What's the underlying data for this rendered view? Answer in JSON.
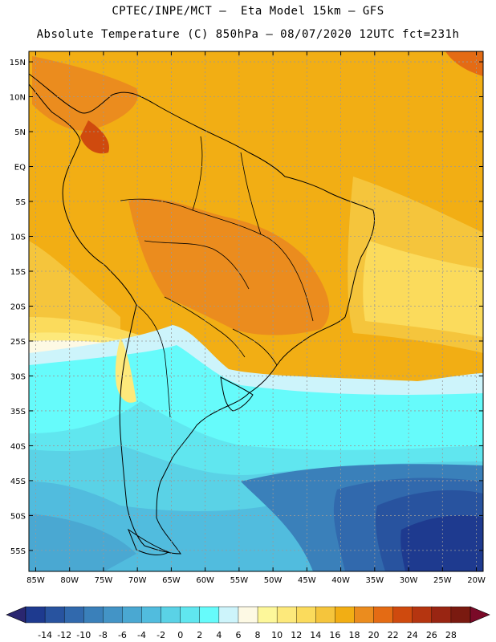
{
  "header": {
    "line1": "CPTEC/INPE/MCT –  Eta Model 15km – GFS",
    "line2": "Absolute Temperature (C) 850hPa – 08/07/2020 12UTC fct=231h"
  },
  "map": {
    "lat_labels": [
      "15N",
      "10N",
      "5N",
      "EQ",
      "5S",
      "10S",
      "15S",
      "20S",
      "25S",
      "30S",
      "35S",
      "40S",
      "45S",
      "50S",
      "55S"
    ],
    "lon_labels": [
      "85W",
      "80W",
      "75W",
      "70W",
      "65W",
      "60W",
      "55W",
      "50W",
      "45W",
      "40W",
      "35W",
      "30W",
      "25W",
      "20W"
    ],
    "lat_values": [
      15,
      10,
      5,
      0,
      -5,
      -10,
      -15,
      -20,
      -25,
      -30,
      -35,
      -40,
      -45,
      -50,
      -55
    ],
    "lon_values": [
      -85,
      -80,
      -75,
      -70,
      -65,
      -60,
      -55,
      -50,
      -45,
      -40,
      -35,
      -30,
      -25,
      -20
    ],
    "extent": {
      "lon_min": -86,
      "lon_max": -19,
      "lat_min": -58,
      "lat_max": 16.5
    }
  },
  "colorbar": {
    "labels": [
      "-14",
      "-12",
      "-10",
      "-8",
      "-6",
      "-4",
      "-2",
      "0",
      "2",
      "4",
      "6",
      "8",
      "10",
      "12",
      "14",
      "16",
      "18",
      "20",
      "22",
      "24",
      "26",
      "28"
    ],
    "colors": [
      "#1e3a8f",
      "#28539f",
      "#3169ad",
      "#3a80ba",
      "#4394c6",
      "#4aa8d2",
      "#51bcde",
      "#5ad2e6",
      "#60e6ef",
      "#66fbfb",
      "#cdf4fb",
      "#fdf9e4",
      "#fdf79a",
      "#fde97b",
      "#fbdb5c",
      "#f5c53c",
      "#f2ae14",
      "#eb8c1e",
      "#e46b14",
      "#cf4a0e",
      "#b53510",
      "#992512",
      "#7a1a10"
    ],
    "low_arrow": "#2a2670",
    "high_arrow": "#7a0a28"
  }
}
